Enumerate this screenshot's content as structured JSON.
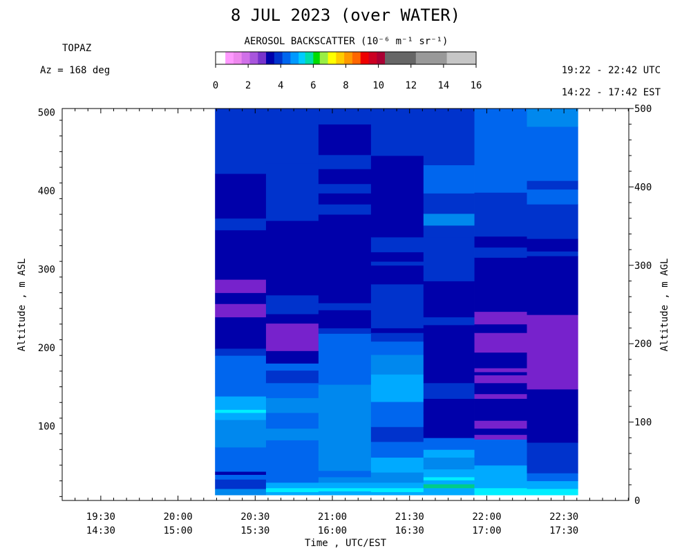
{
  "chart_data": {
    "type": "heatmap",
    "title": "8 JUL 2023 (over WATER)",
    "instrument": "TOPAZ",
    "azimuth": "Az = 168 deg",
    "time_range_utc": "19:22 - 22:42 UTC",
    "time_range_local": "14:22 - 17:42 EST",
    "xlabel": "Time , UTC/EST",
    "ylabel_left": "Altitude , m ASL",
    "ylabel_right": "Altitude , m AGL",
    "colorbar": {
      "label": "AEROSOL BACKSCATTER (10⁻⁶ m⁻¹ sr⁻¹)",
      "range": [
        0,
        16
      ],
      "tick_labels": [
        "0",
        "2",
        "4",
        "6",
        "8",
        "10",
        "12",
        "14",
        "16"
      ],
      "segments": [
        {
          "from": 0.0,
          "to": 0.6,
          "color": "#ffffff"
        },
        {
          "from": 0.6,
          "to": 1.1,
          "color": "#ff99ff"
        },
        {
          "from": 1.1,
          "to": 1.6,
          "color": "#ee88ee"
        },
        {
          "from": 1.6,
          "to": 2.1,
          "color": "#d070e8"
        },
        {
          "from": 2.1,
          "to": 2.6,
          "color": "#a855dc"
        },
        {
          "from": 2.6,
          "to": 3.1,
          "color": "#7733cc"
        },
        {
          "from": 3.1,
          "to": 3.6,
          "color": "#0000aa"
        },
        {
          "from": 3.6,
          "to": 4.1,
          "color": "#0033cc"
        },
        {
          "from": 4.1,
          "to": 4.6,
          "color": "#0066ee"
        },
        {
          "from": 4.6,
          "to": 5.1,
          "color": "#0099ff"
        },
        {
          "from": 5.1,
          "to": 5.5,
          "color": "#00ccff"
        },
        {
          "from": 5.5,
          "to": 6.0,
          "color": "#00ddaa"
        },
        {
          "from": 6.0,
          "to": 6.4,
          "color": "#00dd00"
        },
        {
          "from": 6.4,
          "to": 6.9,
          "color": "#99ee44"
        },
        {
          "from": 6.9,
          "to": 7.4,
          "color": "#ffff00"
        },
        {
          "from": 7.4,
          "to": 7.9,
          "color": "#ffcc00"
        },
        {
          "from": 7.9,
          "to": 8.4,
          "color": "#ff9900"
        },
        {
          "from": 8.4,
          "to": 8.9,
          "color": "#ff6600"
        },
        {
          "from": 8.9,
          "to": 9.4,
          "color": "#ee0000"
        },
        {
          "from": 9.4,
          "to": 9.9,
          "color": "#cc0022"
        },
        {
          "from": 9.9,
          "to": 10.4,
          "color": "#aa0033"
        },
        {
          "from": 10.4,
          "to": 12.3,
          "color": "#666666"
        },
        {
          "from": 12.3,
          "to": 14.2,
          "color": "#999999"
        },
        {
          "from": 14.2,
          "to": 16.0,
          "color": "#c6c6c6"
        }
      ]
    },
    "x_axis": {
      "range_utc_hours": [
        19.25,
        22.92
      ],
      "ticks": [
        {
          "t": 19.5,
          "utc": "19:30",
          "local": "14:30"
        },
        {
          "t": 20.0,
          "utc": "20:00",
          "local": "15:00"
        },
        {
          "t": 20.5,
          "utc": "20:30",
          "local": "15:30"
        },
        {
          "t": 21.0,
          "utc": "21:00",
          "local": "16:00"
        },
        {
          "t": 21.5,
          "utc": "21:30",
          "local": "16:30"
        },
        {
          "t": 22.0,
          "utc": "22:00",
          "local": "17:00"
        },
        {
          "t": 22.5,
          "utc": "22:30",
          "local": "17:30"
        }
      ]
    },
    "y_left": {
      "range": [
        5,
        505
      ],
      "ticks": [
        "100",
        "200",
        "300",
        "400",
        "500"
      ]
    },
    "y_right": {
      "range": [
        0,
        500
      ],
      "ticks": [
        "0",
        "100",
        "200",
        "300",
        "400",
        "500"
      ]
    },
    "legend": {
      "colors": {
        "dv": "#0000aa",
        "db": "#0033cc",
        "mb": "#0066ee",
        "lb": "#0088ee",
        "sk": "#00aaff",
        "cy": "#00eeff",
        "gr": "#00cc88",
        "pu": "#7722cc"
      }
    },
    "profiles": [
      {
        "t0": 20.24,
        "t1": 20.57,
        "bins": [
          [
            7,
            15,
            "lb"
          ],
          [
            15,
            27,
            "db"
          ],
          [
            27,
            33,
            "mb"
          ],
          [
            33,
            37,
            "dv"
          ],
          [
            37,
            68,
            "mb"
          ],
          [
            68,
            103,
            "lb"
          ],
          [
            103,
            112,
            "sk"
          ],
          [
            112,
            116,
            "cy"
          ],
          [
            116,
            133,
            "sk"
          ],
          [
            133,
            162,
            "mb"
          ],
          [
            162,
            185,
            "mb"
          ],
          [
            185,
            194,
            "db"
          ],
          [
            194,
            234,
            "dv"
          ],
          [
            234,
            251,
            "pu"
          ],
          [
            251,
            265,
            "dv"
          ],
          [
            265,
            282,
            "pu"
          ],
          [
            282,
            345,
            "dv"
          ],
          [
            345,
            360,
            "db"
          ],
          [
            360,
            417,
            "dv"
          ],
          [
            417,
            500,
            "db"
          ]
        ]
      },
      {
        "t0": 20.57,
        "t1": 20.91,
        "bins": [
          [
            7,
            11,
            "sk"
          ],
          [
            11,
            16,
            "cy"
          ],
          [
            16,
            23,
            "sk"
          ],
          [
            23,
            40,
            "mb"
          ],
          [
            40,
            77,
            "mb"
          ],
          [
            77,
            92,
            "lb"
          ],
          [
            92,
            112,
            "mb"
          ],
          [
            112,
            131,
            "lb"
          ],
          [
            131,
            150,
            "mb"
          ],
          [
            150,
            166,
            "db"
          ],
          [
            166,
            175,
            "mb"
          ],
          [
            175,
            191,
            "dv"
          ],
          [
            191,
            226,
            "pu"
          ],
          [
            226,
            238,
            "dv"
          ],
          [
            238,
            262,
            "db"
          ],
          [
            262,
            357,
            "dv"
          ],
          [
            357,
            430,
            "db"
          ],
          [
            430,
            500,
            "db"
          ]
        ]
      },
      {
        "t0": 20.91,
        "t1": 21.25,
        "bins": [
          [
            7,
            12,
            "sk"
          ],
          [
            12,
            16,
            "cy"
          ],
          [
            16,
            23,
            "sk"
          ],
          [
            23,
            30,
            "lb"
          ],
          [
            30,
            38,
            "mb"
          ],
          [
            38,
            72,
            "lb"
          ],
          [
            72,
            148,
            "lb"
          ],
          [
            148,
            213,
            "mb"
          ],
          [
            213,
            220,
            "db"
          ],
          [
            220,
            243,
            "dv"
          ],
          [
            243,
            252,
            "db"
          ],
          [
            252,
            365,
            "dv"
          ],
          [
            365,
            378,
            "db"
          ],
          [
            378,
            392,
            "dv"
          ],
          [
            392,
            404,
            "db"
          ],
          [
            404,
            423,
            "dv"
          ],
          [
            423,
            441,
            "db"
          ],
          [
            441,
            480,
            "dv"
          ],
          [
            480,
            500,
            "db"
          ]
        ]
      },
      {
        "t0": 21.25,
        "t1": 21.59,
        "bins": [
          [
            7,
            11,
            "sk"
          ],
          [
            11,
            16,
            "cy"
          ],
          [
            16,
            23,
            "sk"
          ],
          [
            23,
            36,
            "lb"
          ],
          [
            36,
            55,
            "sk"
          ],
          [
            55,
            75,
            "mb"
          ],
          [
            75,
            94,
            "db"
          ],
          [
            94,
            126,
            "mb"
          ],
          [
            126,
            161,
            "sk"
          ],
          [
            161,
            186,
            "lb"
          ],
          [
            186,
            203,
            "mb"
          ],
          [
            203,
            214,
            "db"
          ],
          [
            214,
            220,
            "dv"
          ],
          [
            220,
            241,
            "db"
          ],
          [
            241,
            276,
            "db"
          ],
          [
            276,
            300,
            "dv"
          ],
          [
            300,
            305,
            "db"
          ],
          [
            305,
            317,
            "dv"
          ],
          [
            317,
            336,
            "db"
          ],
          [
            336,
            440,
            "dv"
          ],
          [
            440,
            460,
            "db"
          ],
          [
            460,
            500,
            "db"
          ]
        ]
      },
      {
        "t0": 21.59,
        "t1": 21.92,
        "bins": [
          [
            7,
            16,
            "sk"
          ],
          [
            16,
            21,
            "gr"
          ],
          [
            21,
            26,
            "sk"
          ],
          [
            26,
            30,
            "cy"
          ],
          [
            30,
            40,
            "sk"
          ],
          [
            40,
            55,
            "lb"
          ],
          [
            55,
            65,
            "sk"
          ],
          [
            65,
            80,
            "mb"
          ],
          [
            80,
            112,
            "dv"
          ],
          [
            112,
            130,
            "dv"
          ],
          [
            130,
            150,
            "db"
          ],
          [
            150,
            224,
            "dv"
          ],
          [
            224,
            234,
            "db"
          ],
          [
            234,
            280,
            "dv"
          ],
          [
            280,
            336,
            "db"
          ],
          [
            336,
            351,
            "db"
          ],
          [
            351,
            366,
            "lb"
          ],
          [
            366,
            392,
            "db"
          ],
          [
            392,
            428,
            "mb"
          ],
          [
            428,
            500,
            "db"
          ]
        ]
      },
      {
        "t0": 21.92,
        "t1": 22.26,
        "bins": [
          [
            7,
            16,
            "cy"
          ],
          [
            16,
            30,
            "sk"
          ],
          [
            30,
            45,
            "sk"
          ],
          [
            45,
            58,
            "mb"
          ],
          [
            58,
            78,
            "mb"
          ],
          [
            78,
            84,
            "pu"
          ],
          [
            84,
            92,
            "dv"
          ],
          [
            92,
            102,
            "pu"
          ],
          [
            102,
            130,
            "dv"
          ],
          [
            130,
            136,
            "pu"
          ],
          [
            136,
            150,
            "dv"
          ],
          [
            150,
            160,
            "pu"
          ],
          [
            160,
            164,
            "dv"
          ],
          [
            164,
            169,
            "pu"
          ],
          [
            169,
            189,
            "dv"
          ],
          [
            189,
            214,
            "pu"
          ],
          [
            214,
            225,
            "dv"
          ],
          [
            225,
            241,
            "pu"
          ],
          [
            241,
            310,
            "dv"
          ],
          [
            310,
            323,
            "db"
          ],
          [
            323,
            337,
            "dv"
          ],
          [
            337,
            393,
            "db"
          ],
          [
            393,
            430,
            "mb"
          ],
          [
            430,
            500,
            "mb"
          ]
        ]
      },
      {
        "t0": 22.26,
        "t1": 22.59,
        "bins": [
          [
            7,
            15,
            "cy"
          ],
          [
            15,
            25,
            "sk"
          ],
          [
            25,
            35,
            "mb"
          ],
          [
            35,
            74,
            "db"
          ],
          [
            74,
            90,
            "dv"
          ],
          [
            90,
            97,
            "dv"
          ],
          [
            97,
            142,
            "dv"
          ],
          [
            142,
            237,
            "pu"
          ],
          [
            237,
            312,
            "dv"
          ],
          [
            312,
            318,
            "db"
          ],
          [
            318,
            334,
            "dv"
          ],
          [
            334,
            378,
            "db"
          ],
          [
            378,
            397,
            "mb"
          ],
          [
            397,
            408,
            "db"
          ],
          [
            408,
            477,
            "mb"
          ],
          [
            477,
            500,
            "lb"
          ]
        ]
      }
    ]
  }
}
